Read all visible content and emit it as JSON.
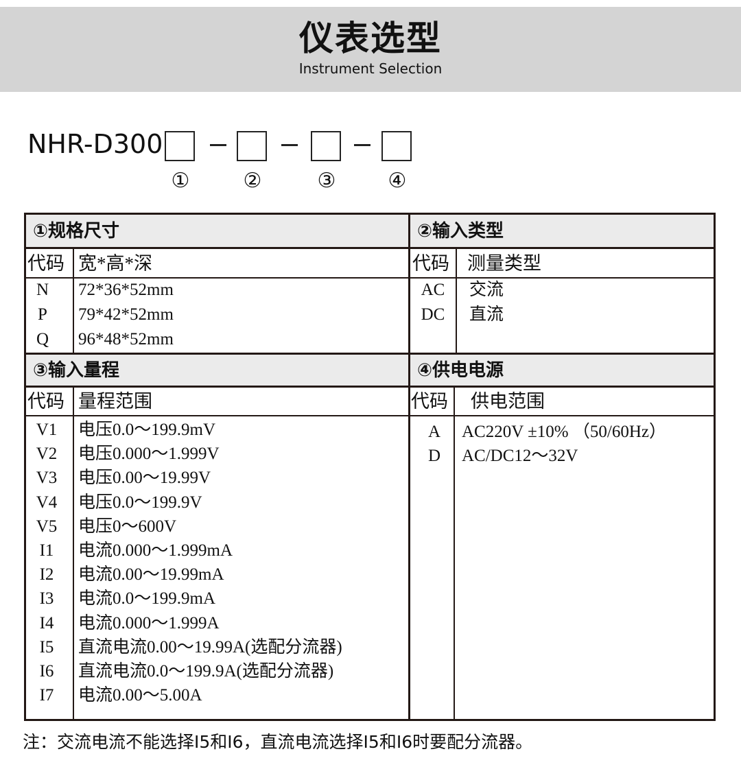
{
  "header": {
    "title": "仪表选型",
    "subtitle": "Instrument Selection"
  },
  "model": {
    "prefix": "NHR-D300",
    "separator": "-",
    "positions": [
      "①",
      "②",
      "③",
      "④"
    ]
  },
  "sections": {
    "size": {
      "title": "①规格尺寸",
      "col_code": "代码",
      "col_value": "宽*高*深",
      "rows": [
        {
          "code": "N",
          "value": "72*36*52mm"
        },
        {
          "code": "P",
          "value": "79*42*52mm"
        },
        {
          "code": "Q",
          "value": "96*48*52mm"
        }
      ]
    },
    "input_type": {
      "title": "②输入类型",
      "col_code": "代码",
      "col_value": "测量类型",
      "rows": [
        {
          "code": "AC",
          "value": "交流"
        },
        {
          "code": "DC",
          "value": "直流"
        }
      ]
    },
    "input_range": {
      "title": "③输入量程",
      "col_code": "代码",
      "col_value": "量程范围",
      "rows": [
        {
          "code": "V1",
          "value": "电压0.0～199.9mV"
        },
        {
          "code": "V2",
          "value": "电压0.000～1.999V"
        },
        {
          "code": "V3",
          "value": "电压0.00～19.99V"
        },
        {
          "code": "V4",
          "value": "电压0.0～199.9V"
        },
        {
          "code": "V5",
          "value": "电压0～600V"
        },
        {
          "code": "I1",
          "value": "电流0.000～1.999mA"
        },
        {
          "code": "I2",
          "value": "电流0.00～19.99mA"
        },
        {
          "code": "I3",
          "value": "电流0.0～199.9mA"
        },
        {
          "code": "I4",
          "value": "电流0.000～1.999A"
        },
        {
          "code": "I5",
          "value": "直流电流0.00～19.99A(选配分流器)"
        },
        {
          "code": "I6",
          "value": "直流电流0.0～199.9A(选配分流器)"
        },
        {
          "code": "I7",
          "value": "电流0.00～5.00A"
        }
      ]
    },
    "power": {
      "title": "④供电电源",
      "col_code": "代码",
      "col_value": "供电范围",
      "rows": [
        {
          "code": "A",
          "value": "AC220V ±10% （50/60Hz）"
        },
        {
          "code": "D",
          "value": "AC/DC12～32V"
        }
      ]
    }
  },
  "note": "注：交流电流不能选择I5和I6，直流电流选择I5和I6时要配分流器。"
}
